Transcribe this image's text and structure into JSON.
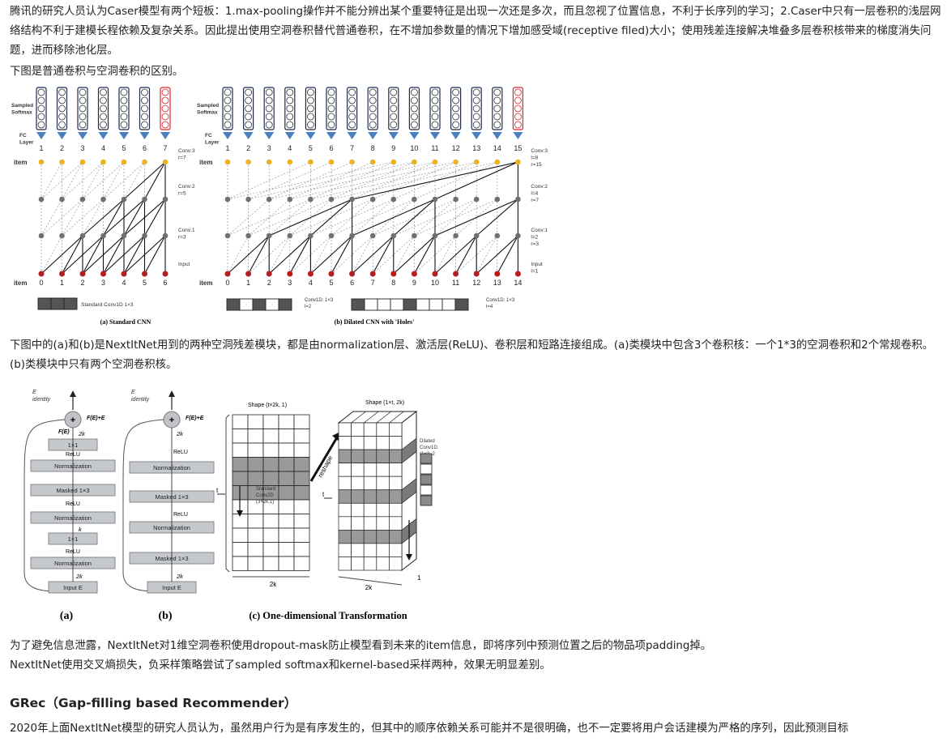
{
  "paragraphs": {
    "p1": "腾讯的研究人员认为Caser模型有两个短板：1.max-pooling操作并不能分辨出某个重要特征是出现一次还是多次，而且忽视了位置信息，不利于长序列的学习；2.Caser中只有一层卷积的浅层网络结构不利于建模长程依赖及复杂关系。因此提出使用空洞卷积替代普通卷积，在不增加参数量的情况下增加感受域(receptive filed)大小；使用残差连接解决堆叠多层卷积核带来的梯度消失问题，进而移除池化层。",
    "p2": "下图是普通卷积与空洞卷积的区别。",
    "p3": "下图中的(a)和(b)是NextItNet用到的两种空洞残差模块，都是由normalization层、激活层(ReLU)、卷积层和短路连接组成。(a)类模块中包含3个卷积核：一个1*3的空洞卷积和2个常规卷积。(b)类模块中只有两个空洞卷积核。",
    "p4": "为了避免信息泄露，NextItNet对1维空洞卷积使用dropout-mask防止模型看到未来的item信息，即将序列中预测位置之后的物品项padding掉。",
    "p5": "NextItNet使用交叉熵损失，负采样策略尝试了sampled softmax和kernel-based采样两种，效果无明显差别。",
    "heading": "GRec（Gap-filling based Recommender）",
    "p6": "2020年上面NextItNet模型的研究人员认为，虽然用户行为是有序发生的，但其中的顺序依赖关系可能并不是很明确，也不一定要将用户会话建模为严格的序列，因此预测目标"
  },
  "figure1": {
    "left": {
      "sampled_softmax": [
        "Sampled",
        "Softmax"
      ],
      "fc_layer": [
        "FC",
        "Layer"
      ],
      "top_numbers": [
        "1",
        "2",
        "3",
        "4",
        "5",
        "6",
        "7"
      ],
      "bottom_numbers": [
        "0",
        "1",
        "2",
        "3",
        "4",
        "5",
        "6"
      ],
      "item_label": "item",
      "conv3": [
        "Conv:3",
        "r=7"
      ],
      "conv2": [
        "Conv:2",
        "r=5"
      ],
      "conv1": [
        "Conv:1",
        "r=3"
      ],
      "input": "Input",
      "legend": "Standard Conv1D  1×3",
      "caption": "(a) Standard CNN"
    },
    "right": {
      "sampled_softmax": [
        "Sampled",
        "Softmax"
      ],
      "fc_layer": [
        "FC",
        "Layer"
      ],
      "top_numbers": [
        "1",
        "2",
        "3",
        "4",
        "5",
        "6",
        "7",
        "8",
        "9",
        "10",
        "11",
        "12",
        "13",
        "14",
        "15"
      ],
      "bottom_numbers": [
        "0",
        "1",
        "2",
        "3",
        "4",
        "5",
        "6",
        "7",
        "8",
        "9",
        "10",
        "11",
        "12",
        "13",
        "14"
      ],
      "item_label": "item",
      "conv3": [
        "Conv:3",
        "l=8",
        "r=15"
      ],
      "conv2": [
        "Conv:2",
        "l=4",
        "r=7"
      ],
      "conv1": [
        "Conv:1",
        "l=2",
        "r=3"
      ],
      "input": [
        "Input",
        "l=1"
      ],
      "legend1": [
        "Conv1D: 1×3",
        "l=2"
      ],
      "legend2": [
        "Conv1D: 1×3",
        "l=4"
      ],
      "caption": "(b) Dilated CNN with 'Holes'"
    }
  },
  "figure2": {
    "a": {
      "e_identity": [
        "E",
        "identity"
      ],
      "plus": "+",
      "fe_plus_e": "F(E)+E",
      "fe": "F(E)",
      "layers": [
        "1×1",
        "Normalization",
        "Masked 1×3",
        "Normalization",
        "1×1",
        "Normalization",
        "Input E"
      ],
      "dims": [
        "2k",
        "k",
        "2k"
      ],
      "relu": "ReLU",
      "caption": "(a)"
    },
    "b": {
      "e_identity": [
        "E",
        "identity"
      ],
      "plus": "+",
      "fe_plus_e": "F(E)+E",
      "layers": [
        "Normalization",
        "Masked 1×3",
        "Normalization",
        "Masked 1×3",
        "Input E"
      ],
      "dims": [
        "2k",
        "2k"
      ],
      "relu": "ReLU",
      "caption": "(b)"
    },
    "c": {
      "shape1": "Shape (t×2k, 1)",
      "shape2": "Shape (1×t, 2k)",
      "std_conv": [
        "Standard",
        "Conv2D",
        "(3×2k,1)"
      ],
      "reshape": "reshape",
      "dilated": [
        "Dilated",
        "Conv1D:",
        "(1×3, 2"
      ],
      "t": "t",
      "k2": "2k",
      "one": "1",
      "caption": "(c) One-dimensional Transformation"
    }
  },
  "colors": {
    "input_node": "#b81c1c",
    "hidden_node": "#707070",
    "item_node": "#f0b020",
    "fc_arrow": "#4a7fc1",
    "softmax_red": "#e0242c"
  }
}
